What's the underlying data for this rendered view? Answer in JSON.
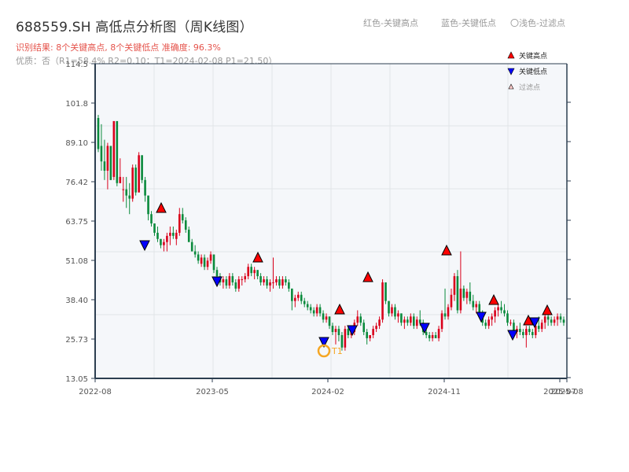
{
  "header": {
    "title": "688559.SH 高低点分析图（周K线图）",
    "result": "识别结果: 8个关键高点, 8个关键低点  准确度: 96.3%",
    "quality": "优质：否（R1=58.4%  R2=0.10；T1=2024-02-08 P1=21.50）",
    "legend_red": "红色-关键高点",
    "legend_blue": "蓝色-关键低点",
    "legend_light": "〇浅色-过滤点"
  },
  "colors": {
    "up": "#d9001b",
    "down": "#0a8a3c",
    "high_marker": "#ff0000",
    "low_marker": "#0000ff",
    "t1_ring": "#f5a623",
    "plot_bg": "#f5f7fa",
    "grid": "#e1e4e8",
    "axis": "#2c3e50"
  },
  "chart_data": {
    "type": "candlestick",
    "title": "688559.SH 高低点分析图（周K线图）",
    "xlabel": "",
    "ylabel": "",
    "ylim": [
      13.05,
      114.5
    ],
    "y_ticks": [
      "114.5",
      "101.8",
      "89.10",
      "76.42",
      "63.75",
      "51.08",
      "38.40",
      "25.73",
      "13.05"
    ],
    "x_ticks": [
      "2022-08",
      "2023-05",
      "2024-02",
      "2024-11",
      "2025-07",
      "2025-08"
    ],
    "grid": true,
    "legend_position": "upper right",
    "legend": [
      {
        "label": "关键高点",
        "marker": "triangle-up",
        "color": "#ff0000"
      },
      {
        "label": "关键低点",
        "marker": "triangle-down",
        "color": "#0000ff"
      },
      {
        "label": "过滤点",
        "marker": "triangle-up-light",
        "color": "#ffcccc"
      }
    ],
    "key_highs": [
      {
        "date": "2022-12",
        "price": 67.5
      },
      {
        "date": "2023-08",
        "price": 52.0
      },
      {
        "date": "2024-02",
        "price": 34.5
      },
      {
        "date": "2024-04",
        "price": 45.5
      },
      {
        "date": "2024-11",
        "price": 54.5
      },
      {
        "date": "2025-01",
        "price": 38.0
      },
      {
        "date": "2025-04",
        "price": 31.5
      },
      {
        "date": "2025-06",
        "price": 34.5
      }
    ],
    "key_lows": [
      {
        "date": "2022-11",
        "price": 54.0
      },
      {
        "date": "2023-05",
        "price": 41.5
      },
      {
        "date": "2024-02",
        "price": 21.5
      },
      {
        "date": "2024-03",
        "price": 25.5
      },
      {
        "date": "2024-09",
        "price": 26.0
      },
      {
        "date": "2025-02",
        "price": 29.5
      },
      {
        "date": "2025-03",
        "price": 23.5
      },
      {
        "date": "2025-05",
        "price": 28.5
      }
    ],
    "annotation": {
      "label": "T1",
      "date": "2024-02-08",
      "price": 21.5
    },
    "candles": [
      [
        97,
        98,
        86,
        87
      ],
      [
        88,
        95,
        80,
        83
      ],
      [
        83,
        90,
        77,
        80
      ],
      [
        80,
        89,
        74,
        88
      ],
      [
        88,
        88,
        77,
        77
      ],
      [
        78,
        96,
        77,
        96
      ],
      [
        96,
        96,
        75,
        76
      ],
      [
        76,
        84,
        76,
        78
      ],
      [
        74,
        78,
        70,
        74
      ],
      [
        74,
        78,
        68,
        72
      ],
      [
        72,
        76,
        66,
        71
      ],
      [
        71,
        82,
        70,
        81
      ],
      [
        81,
        82,
        72,
        73
      ],
      [
        73,
        86,
        73,
        85
      ],
      [
        85,
        85,
        76,
        77
      ],
      [
        77,
        78,
        70,
        72
      ],
      [
        72,
        72,
        64,
        66
      ],
      [
        66,
        67,
        62,
        63
      ],
      [
        63,
        63,
        59,
        60
      ],
      [
        60,
        62,
        57,
        58
      ],
      [
        58,
        58,
        55,
        56
      ],
      [
        56,
        58,
        54,
        57
      ],
      [
        57,
        60,
        54,
        59
      ],
      [
        59,
        62,
        56,
        60
      ],
      [
        60,
        62,
        58,
        59
      ],
      [
        58,
        61,
        56,
        60
      ],
      [
        60,
        68,
        59,
        66
      ],
      [
        66,
        68,
        63,
        64
      ],
      [
        64,
        65,
        60,
        61
      ],
      [
        61,
        62,
        57,
        57
      ],
      [
        57,
        58,
        54,
        54
      ],
      [
        54,
        56,
        52,
        53
      ],
      [
        53,
        54,
        50,
        51
      ],
      [
        50,
        53,
        49,
        52
      ],
      [
        52,
        53,
        48,
        49
      ],
      [
        49,
        52,
        48,
        51
      ],
      [
        51,
        54,
        50,
        53
      ],
      [
        53,
        53,
        47,
        48
      ],
      [
        48,
        49,
        45,
        46
      ],
      [
        46,
        47,
        43,
        44
      ],
      [
        44,
        46,
        42,
        45
      ],
      [
        45,
        46,
        42,
        43
      ],
      [
        43,
        47,
        42,
        46
      ],
      [
        46,
        47,
        43,
        44
      ],
      [
        44,
        45,
        41,
        42
      ],
      [
        42,
        46,
        41,
        45
      ],
      [
        45,
        46,
        43,
        45
      ],
      [
        45,
        47,
        44,
        46
      ],
      [
        46,
        50,
        45,
        49
      ],
      [
        49,
        50,
        46,
        47
      ],
      [
        47,
        49,
        45,
        48
      ],
      [
        48,
        48,
        45,
        46
      ],
      [
        46,
        47,
        43,
        44
      ],
      [
        44,
        46,
        43,
        45
      ],
      [
        45,
        46,
        42,
        43
      ],
      [
        43,
        45,
        41,
        44
      ],
      [
        44,
        52,
        42,
        44
      ],
      [
        44,
        46,
        43,
        45
      ],
      [
        45,
        46,
        42,
        43
      ],
      [
        43,
        46,
        42,
        45
      ],
      [
        45,
        46,
        43,
        44
      ],
      [
        44,
        45,
        41,
        42
      ],
      [
        42,
        42,
        35,
        38
      ],
      [
        38,
        40,
        36,
        39
      ],
      [
        39,
        41,
        38,
        40
      ],
      [
        40,
        41,
        37,
        38
      ],
      [
        38,
        39,
        36,
        37
      ],
      [
        37,
        38,
        35,
        36
      ],
      [
        36,
        37,
        34,
        35
      ],
      [
        35,
        36,
        33,
        34
      ],
      [
        34,
        37,
        33,
        36
      ],
      [
        36,
        37,
        33,
        34
      ],
      [
        34,
        35,
        31,
        32
      ],
      [
        32,
        34,
        31,
        33
      ],
      [
        33,
        33,
        29,
        30
      ],
      [
        30,
        31,
        27,
        28
      ],
      [
        28,
        30,
        24,
        29
      ],
      [
        29,
        30,
        25,
        27
      ],
      [
        27,
        28,
        22,
        23
      ],
      [
        23,
        30,
        22,
        29
      ],
      [
        29,
        30,
        26,
        27
      ],
      [
        27,
        29,
        26,
        28
      ],
      [
        28,
        32,
        27,
        31
      ],
      [
        31,
        35,
        30,
        33
      ],
      [
        33,
        34,
        30,
        31
      ],
      [
        31,
        32,
        27,
        28
      ],
      [
        28,
        29,
        24,
        26
      ],
      [
        26,
        27,
        25,
        27
      ],
      [
        27,
        30,
        26,
        29
      ],
      [
        29,
        31,
        28,
        30
      ],
      [
        30,
        33,
        29,
        32
      ],
      [
        32,
        45,
        31,
        44
      ],
      [
        44,
        44,
        37,
        38
      ],
      [
        38,
        38,
        33,
        34
      ],
      [
        34,
        37,
        33,
        36
      ],
      [
        36,
        37,
        32,
        33
      ],
      [
        33,
        35,
        31,
        34
      ],
      [
        34,
        34,
        30,
        31
      ],
      [
        31,
        33,
        29,
        32
      ],
      [
        32,
        33,
        30,
        31
      ],
      [
        31,
        34,
        30,
        33
      ],
      [
        33,
        34,
        29,
        30
      ],
      [
        30,
        33,
        29,
        32
      ],
      [
        32,
        35,
        30,
        31
      ],
      [
        31,
        32,
        27,
        28
      ],
      [
        28,
        29,
        26,
        27
      ],
      [
        27,
        28,
        25,
        26
      ],
      [
        26,
        28,
        25,
        27
      ],
      [
        27,
        28,
        26,
        26
      ],
      [
        26,
        30,
        25,
        29
      ],
      [
        29,
        35,
        28,
        34
      ],
      [
        34,
        42,
        32,
        33
      ],
      [
        33,
        37,
        32,
        36
      ],
      [
        36,
        42,
        35,
        40
      ],
      [
        40,
        47,
        38,
        46
      ],
      [
        46,
        48,
        34,
        35
      ],
      [
        35,
        54,
        34,
        42
      ],
      [
        42,
        43,
        38,
        39
      ],
      [
        39,
        42,
        37,
        41
      ],
      [
        41,
        44,
        37,
        38
      ],
      [
        38,
        40,
        35,
        36
      ],
      [
        36,
        38,
        34,
        37
      ],
      [
        37,
        38,
        33,
        34
      ],
      [
        34,
        35,
        30,
        31
      ],
      [
        31,
        32,
        29,
        30
      ],
      [
        30,
        33,
        29,
        32
      ],
      [
        32,
        34,
        30,
        33
      ],
      [
        33,
        36,
        31,
        35
      ],
      [
        35,
        37,
        33,
        36
      ],
      [
        36,
        38,
        34,
        35
      ],
      [
        35,
        37,
        33,
        34
      ],
      [
        34,
        35,
        30,
        31
      ],
      [
        31,
        32,
        30,
        31
      ],
      [
        31,
        32,
        27,
        28
      ],
      [
        28,
        30,
        26,
        29
      ],
      [
        29,
        31,
        27,
        28
      ],
      [
        28,
        29,
        26,
        27
      ],
      [
        27,
        30,
        23,
        29
      ],
      [
        29,
        30,
        27,
        28
      ],
      [
        28,
        29,
        26,
        27
      ],
      [
        27,
        31,
        26,
        30
      ],
      [
        30,
        33,
        28,
        29
      ],
      [
        29,
        32,
        28,
        31
      ],
      [
        31,
        34,
        29,
        33
      ],
      [
        33,
        34,
        30,
        32
      ],
      [
        32,
        33,
        30,
        31
      ],
      [
        31,
        33,
        30,
        32
      ],
      [
        32,
        34,
        30,
        33
      ],
      [
        33,
        34,
        31,
        32
      ],
      [
        32,
        33,
        30,
        31
      ]
    ]
  }
}
